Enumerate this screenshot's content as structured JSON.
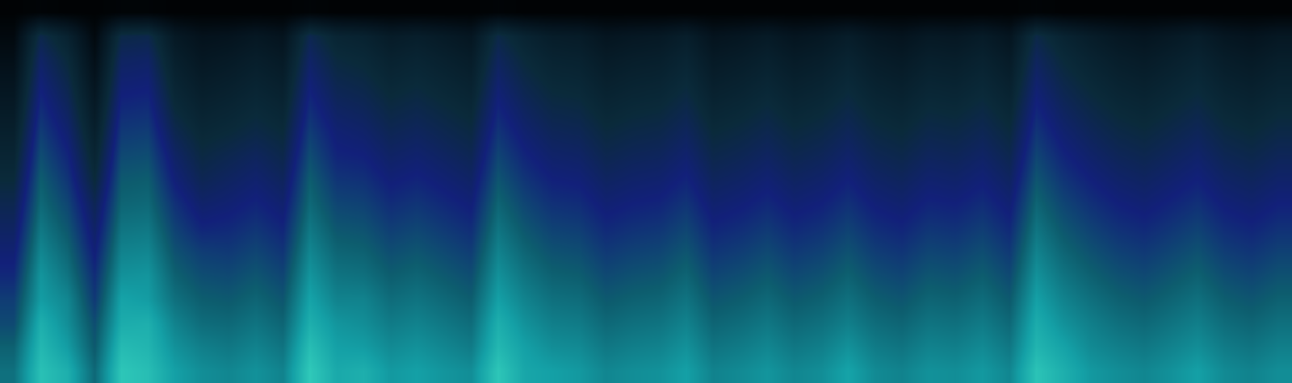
{
  "chart_data": {
    "type": "heatmap",
    "tick_labels": false,
    "zlim": [
      0,
      100
    ],
    "z": [
      [
        65,
        89,
        83,
        63,
        91,
        88,
        78,
        73,
        71,
        74,
        70,
        92,
        81,
        83,
        76,
        78,
        75,
        73,
        91,
        80,
        78,
        76,
        71,
        73,
        74,
        78,
        70,
        72,
        75,
        71,
        73,
        79,
        72,
        70,
        74,
        73,
        76,
        71,
        90,
        83,
        76,
        73,
        71,
        74,
        78,
        72,
        70,
        73
      ],
      [
        61,
        86,
        77,
        59,
        87,
        85,
        74,
        69,
        67,
        70,
        66,
        88,
        78,
        77,
        72,
        74,
        71,
        68,
        86,
        78,
        73,
        72,
        67,
        69,
        70,
        74,
        66,
        68,
        71,
        67,
        69,
        74,
        68,
        66,
        70,
        69,
        72,
        67,
        85,
        79,
        72,
        69,
        67,
        70,
        73,
        68,
        66,
        69
      ],
      [
        55,
        83,
        73,
        56,
        82,
        83,
        70,
        64,
        63,
        66,
        62,
        83,
        75,
        73,
        68,
        70,
        67,
        64,
        83,
        74,
        69,
        68,
        63,
        65,
        66,
        70,
        62,
        64,
        67,
        63,
        65,
        69,
        64,
        62,
        66,
        65,
        68,
        63,
        82,
        74,
        69,
        65,
        63,
        66,
        69,
        64,
        62,
        65
      ],
      [
        52,
        77,
        71,
        51,
        79,
        77,
        65,
        60,
        59,
        62,
        58,
        79,
        70,
        70,
        64,
        66,
        63,
        60,
        78,
        70,
        65,
        64,
        59,
        61,
        62,
        66,
        58,
        60,
        63,
        59,
        61,
        65,
        60,
        58,
        62,
        61,
        64,
        59,
        78,
        70,
        65,
        61,
        59,
        62,
        65,
        60,
        58,
        61
      ],
      [
        47,
        75,
        66,
        48,
        74,
        75,
        61,
        56,
        55,
        58,
        54,
        75,
        66,
        65,
        60,
        62,
        59,
        56,
        74,
        66,
        61,
        60,
        55,
        57,
        58,
        62,
        54,
        56,
        59,
        55,
        57,
        61,
        56,
        54,
        58,
        57,
        60,
        55,
        74,
        66,
        61,
        57,
        55,
        58,
        61,
        56,
        54,
        57
      ],
      [
        43,
        71,
        62,
        44,
        70,
        71,
        57,
        52,
        51,
        54,
        50,
        71,
        62,
        61,
        56,
        58,
        55,
        52,
        70,
        62,
        57,
        56,
        51,
        53,
        54,
        58,
        50,
        52,
        55,
        51,
        53,
        57,
        52,
        50,
        54,
        53,
        56,
        51,
        70,
        62,
        57,
        53,
        51,
        54,
        57,
        52,
        50,
        53
      ],
      [
        39,
        67,
        58,
        40,
        66,
        67,
        53,
        46,
        47,
        50,
        46,
        67,
        58,
        57,
        52,
        54,
        51,
        48,
        66,
        58,
        53,
        52,
        47,
        49,
        50,
        54,
        46,
        48,
        51,
        47,
        49,
        53,
        48,
        46,
        50,
        49,
        52,
        47,
        66,
        58,
        53,
        49,
        47,
        50,
        53,
        48,
        46,
        49
      ],
      [
        35,
        63,
        54,
        36,
        62,
        63,
        49,
        41,
        43,
        46,
        42,
        63,
        54,
        53,
        48,
        50,
        47,
        44,
        62,
        54,
        49,
        48,
        43,
        45,
        46,
        50,
        42,
        44,
        47,
        43,
        45,
        49,
        44,
        42,
        46,
        45,
        48,
        43,
        62,
        54,
        49,
        45,
        43,
        46,
        49,
        44,
        42,
        45
      ],
      [
        30,
        60,
        50,
        30,
        59,
        60,
        44,
        36,
        39,
        42,
        38,
        60,
        50,
        49,
        44,
        46,
        43,
        40,
        58,
        50,
        45,
        44,
        39,
        41,
        42,
        46,
        38,
        40,
        43,
        39,
        41,
        45,
        40,
        38,
        42,
        41,
        44,
        39,
        58,
        50,
        45,
        41,
        39,
        42,
        45,
        40,
        38,
        41
      ],
      [
        26,
        56,
        46,
        26,
        55,
        56,
        40,
        32,
        35,
        38,
        34,
        56,
        46,
        45,
        40,
        42,
        39,
        36,
        54,
        46,
        41,
        40,
        35,
        37,
        38,
        42,
        34,
        36,
        39,
        35,
        37,
        41,
        36,
        34,
        38,
        37,
        40,
        35,
        54,
        46,
        41,
        37,
        35,
        38,
        41,
        36,
        34,
        37
      ],
      [
        22,
        52,
        42,
        22,
        51,
        52,
        35,
        28,
        30,
        33,
        30,
        52,
        43,
        41,
        36,
        38,
        35,
        32,
        50,
        42,
        37,
        36,
        31,
        33,
        34,
        38,
        30,
        32,
        35,
        31,
        33,
        37,
        32,
        30,
        34,
        33,
        36,
        31,
        50,
        42,
        37,
        33,
        31,
        34,
        37,
        32,
        30,
        33
      ],
      [
        18,
        48,
        38,
        18,
        47,
        48,
        30,
        24,
        26,
        29,
        26,
        48,
        39,
        37,
        32,
        34,
        31,
        28,
        46,
        38,
        33,
        32,
        27,
        29,
        30,
        34,
        26,
        28,
        31,
        27,
        29,
        33,
        28,
        26,
        30,
        29,
        32,
        27,
        46,
        38,
        33,
        29,
        27,
        30,
        33,
        28,
        26,
        29
      ],
      [
        14,
        44,
        34,
        14,
        43,
        44,
        26,
        20,
        22,
        25,
        22,
        44,
        35,
        33,
        28,
        30,
        27,
        24,
        42,
        34,
        29,
        28,
        23,
        25,
        26,
        30,
        22,
        24,
        27,
        23,
        25,
        29,
        24,
        22,
        26,
        25,
        28,
        23,
        42,
        34,
        29,
        25,
        23,
        26,
        29,
        24,
        22,
        25
      ],
      [
        10,
        40,
        30,
        10,
        39,
        40,
        22,
        16,
        18,
        21,
        18,
        40,
        31,
        29,
        24,
        26,
        23,
        20,
        38,
        30,
        25,
        24,
        19,
        21,
        22,
        26,
        18,
        20,
        23,
        19,
        21,
        25,
        20,
        18,
        22,
        21,
        24,
        19,
        38,
        30,
        25,
        21,
        19,
        22,
        25,
        20,
        18,
        21
      ],
      [
        6,
        34,
        24,
        6,
        33,
        34,
        17,
        12,
        13,
        16,
        13,
        35,
        26,
        24,
        19,
        21,
        18,
        15,
        33,
        25,
        20,
        19,
        14,
        16,
        17,
        21,
        13,
        15,
        18,
        14,
        16,
        20,
        15,
        13,
        17,
        16,
        19,
        14,
        33,
        25,
        20,
        16,
        14,
        17,
        20,
        15,
        13,
        16
      ],
      [
        2,
        3,
        2,
        2,
        3,
        3,
        2,
        2,
        2,
        2,
        2,
        3,
        2,
        2,
        2,
        2,
        2,
        2,
        3,
        2,
        2,
        2,
        2,
        2,
        2,
        2,
        2,
        2,
        2,
        2,
        2,
        2,
        2,
        2,
        2,
        2,
        2,
        2,
        3,
        2,
        2,
        2,
        2,
        2,
        2,
        2,
        2,
        2
      ]
    ]
  }
}
